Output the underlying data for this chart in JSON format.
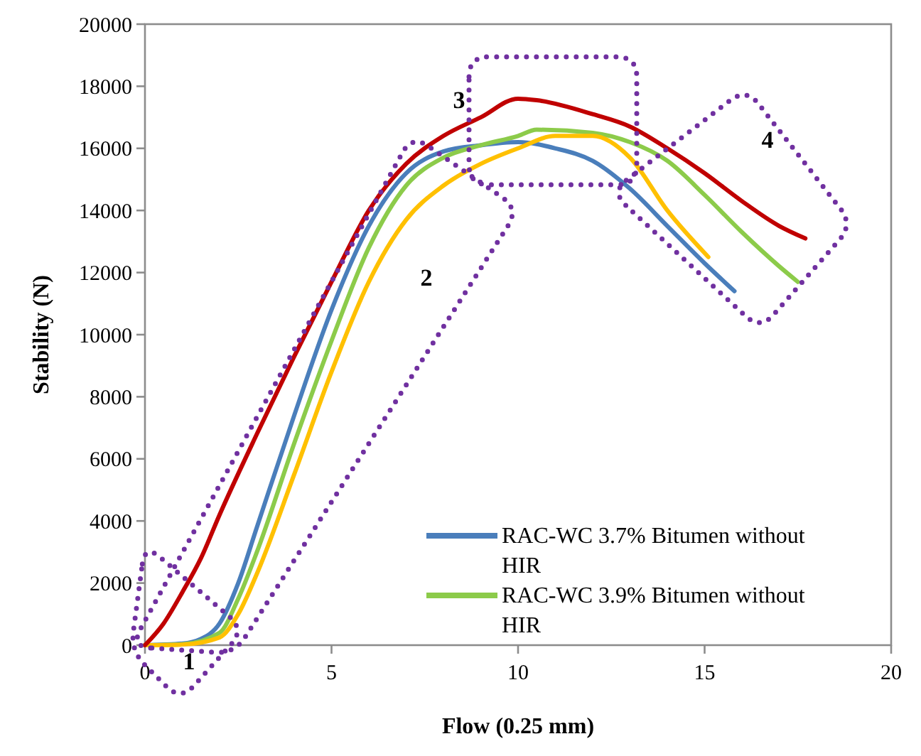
{
  "chart_data": {
    "type": "line",
    "xlabel": "Flow (0.25 mm)",
    "ylabel": "Stability (N)",
    "xlim": [
      0,
      20
    ],
    "xticks": [
      0,
      5,
      10,
      15,
      20
    ],
    "ylim": [
      0,
      20000
    ],
    "yticks": [
      0,
      2000,
      4000,
      6000,
      8000,
      10000,
      12000,
      14000,
      16000,
      18000,
      20000
    ],
    "grid": false,
    "legend": "bottom right",
    "marker": "none",
    "line_style": "solid",
    "series": [
      {
        "name": "RAC-WC 3.7% Bitumen without HIR",
        "color": "#4a7ebb",
        "x": [
          0,
          1,
          1.5,
          2,
          2.5,
          3,
          4,
          5,
          6,
          7,
          8,
          9,
          10,
          11,
          12,
          13,
          14,
          15,
          15.8
        ],
        "values": [
          0,
          50,
          200,
          700,
          2000,
          3800,
          7400,
          10800,
          13500,
          15200,
          15900,
          16100,
          16200,
          16000,
          15600,
          14700,
          13500,
          12300,
          11400
        ]
      },
      {
        "name": "RAC-WC 3.9% Bitumen without HIR",
        "color": "#8ccb4a",
        "x": [
          0,
          1,
          2,
          2.5,
          3,
          4,
          5,
          6,
          7,
          8,
          9,
          10,
          10.5,
          12,
          13,
          14,
          15,
          16,
          17,
          17.5
        ],
        "values": [
          0,
          30,
          400,
          1500,
          3000,
          6500,
          9800,
          12800,
          14800,
          15700,
          16100,
          16400,
          16600,
          16500,
          16200,
          15600,
          14500,
          13300,
          12200,
          11700
        ]
      },
      {
        "color": "#ffc000",
        "x": [
          0,
          1,
          2,
          2.5,
          3,
          4,
          5,
          6,
          7,
          8,
          9,
          10,
          11,
          12,
          13,
          14,
          15.1
        ],
        "values": [
          0,
          20,
          250,
          1000,
          2300,
          5500,
          8800,
          11700,
          13700,
          14800,
          15500,
          16000,
          16400,
          16400,
          15700,
          14000,
          12500
        ]
      },
      {
        "color": "#c00000",
        "x": [
          0,
          0.5,
          1,
          1.5,
          2,
          3,
          4,
          5,
          6,
          7,
          8,
          9,
          10,
          10.5,
          12,
          13,
          14,
          15,
          16,
          17,
          17.7
        ],
        "values": [
          0,
          700,
          1700,
          2800,
          4200,
          6800,
          9300,
          11700,
          14000,
          15500,
          16400,
          17000,
          17600,
          17550,
          17100,
          16700,
          16000,
          15200,
          14300,
          13500,
          13100
        ]
      }
    ],
    "annotations": [
      "1",
      "2",
      "3",
      "4"
    ]
  }
}
